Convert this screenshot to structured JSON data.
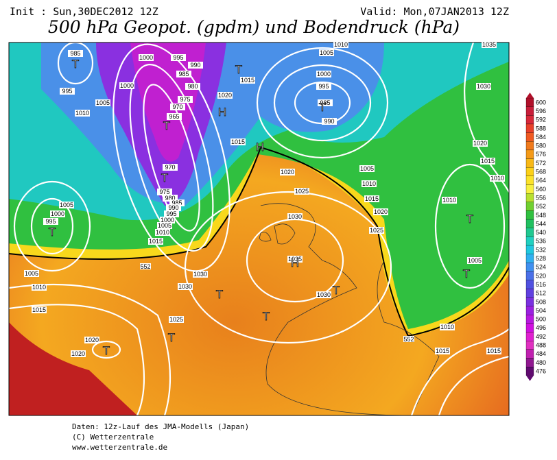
{
  "header": {
    "init": "Init : Sun,30DEC2012 12Z",
    "valid": "Valid: Mon,07JAN2013 12Z",
    "title": "500 hPa Geopot. (gpdm) und Bodendruck (hPa)"
  },
  "isobar_labels": [
    985,
    1000,
    995,
    990,
    985,
    980,
    975,
    970,
    965,
    1000,
    995,
    1005,
    1010,
    1020,
    1015,
    1015,
    1005,
    1010,
    1000,
    995,
    985,
    990,
    1030,
    1035,
    1020,
    1015,
    1010,
    970,
    975,
    980,
    985,
    990,
    995,
    1000,
    1005,
    1010,
    1015,
    1005,
    1000,
    995,
    1020,
    1025,
    1030,
    1005,
    1010,
    1015,
    1020,
    1025,
    1010,
    1005,
    1035,
    1030,
    1030,
    1030,
    1005,
    1010,
    1015,
    1025,
    1020,
    1020,
    1010,
    1015,
    1015
  ],
  "geopotential_labels": [
    552,
    552
  ],
  "pressure_centers": [
    "T",
    "T",
    "T",
    "T",
    "T",
    "H",
    "H",
    "H",
    "T",
    "T",
    "T",
    "T",
    "T",
    "T",
    "T",
    "T"
  ],
  "colorbar": {
    "labels": [
      600,
      596,
      592,
      588,
      584,
      580,
      576,
      572,
      568,
      564,
      560,
      556,
      552,
      548,
      544,
      540,
      536,
      532,
      528,
      524,
      520,
      516,
      512,
      508,
      504,
      500,
      496,
      492,
      488,
      484,
      480,
      476
    ],
    "colors": [
      "#b0102a",
      "#c81e3a",
      "#d8283a",
      "#e8402a",
      "#f05a22",
      "#f07a1c",
      "#f49a18",
      "#f8b816",
      "#fcd018",
      "#fce22a",
      "#f8f040",
      "#b8e030",
      "#70d030",
      "#30c040",
      "#20c060",
      "#20c890",
      "#20d0c0",
      "#20c8e0",
      "#30b0f0",
      "#4090f0",
      "#4a70e8",
      "#5050e0",
      "#6040e0",
      "#7a30e0",
      "#9a20e0",
      "#b818e0",
      "#d010e0",
      "#e020d0",
      "#e030c0",
      "#c020b0",
      "#901890",
      "#600a70"
    ]
  },
  "footer": [
    "Daten: 12z-Lauf des JMA-Modells (Japan)",
    "(C) Wetterzentrale",
    "www.wetterzentrale.de"
  ]
}
